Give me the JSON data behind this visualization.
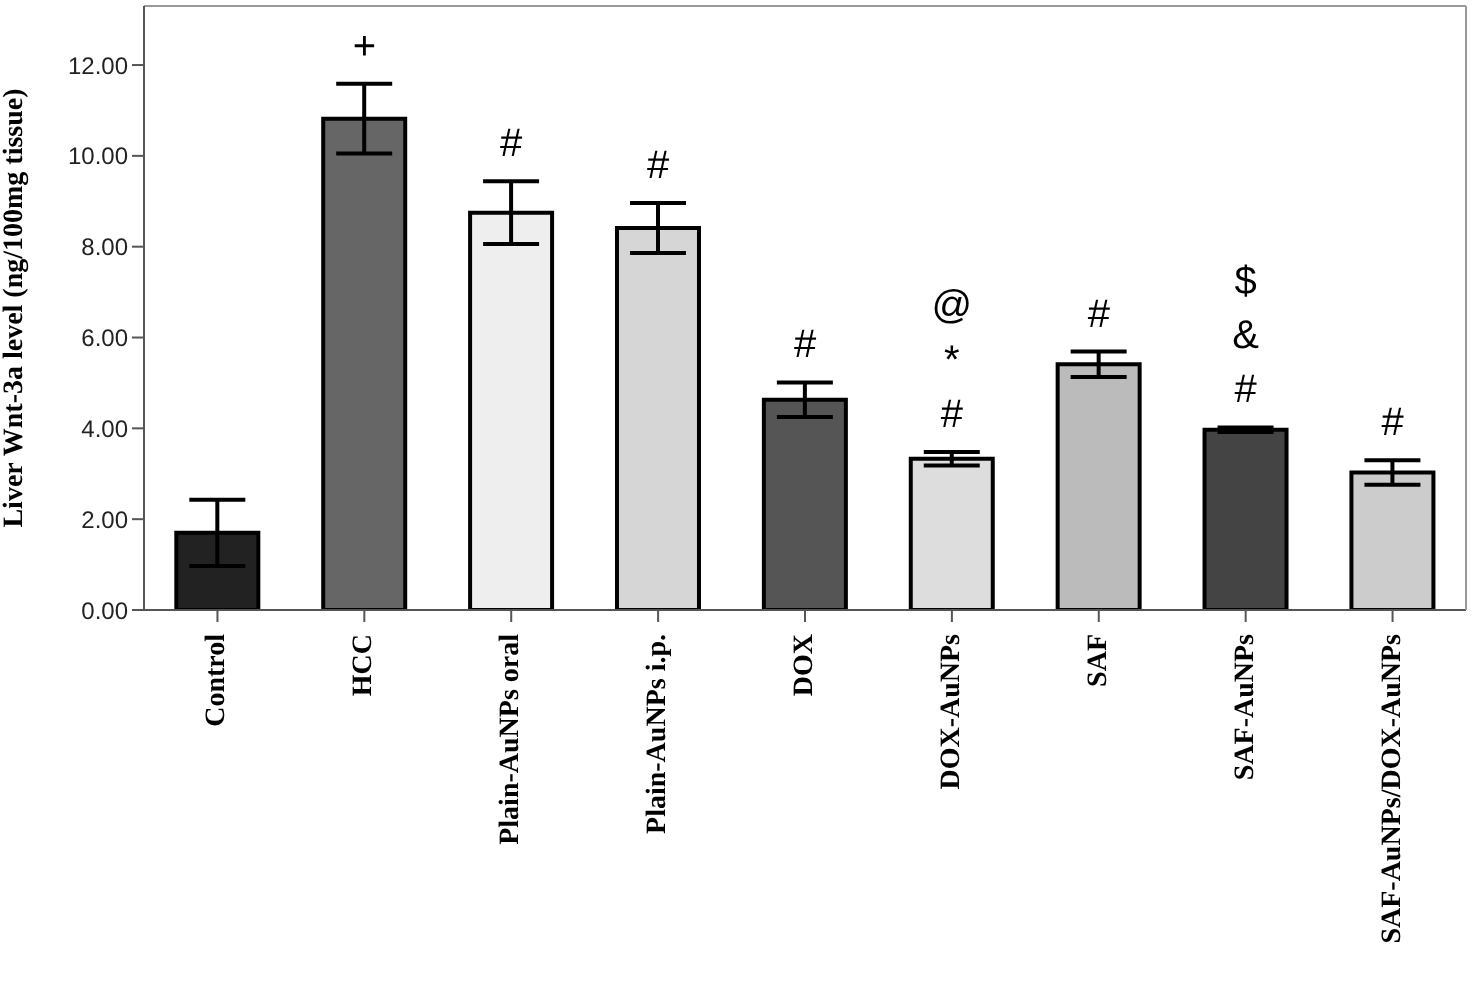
{
  "chart_data": {
    "type": "bar",
    "ylabel": "Liver Wnt-3a level (ng/100mg tissue)",
    "categories": [
      "Control",
      "HCC",
      "Plain-AuNPs oral",
      "Plain-AuNPs i.p.",
      "DOX",
      "DOX-AuNPs",
      "SAF",
      "SAF-AuNPs",
      "SAF-AuNPs/DOX-AuNPs"
    ],
    "values": [
      1.7,
      10.82,
      8.75,
      8.41,
      4.63,
      3.33,
      5.41,
      3.97,
      3.03
    ],
    "errors": [
      0.73,
      0.77,
      0.69,
      0.55,
      0.38,
      0.15,
      0.28,
      0.05,
      0.27
    ],
    "colors": [
      "#222222",
      "#666666",
      "#eeeeee",
      "#d6d6d6",
      "#555555",
      "#dddddd",
      "#bbbbbb",
      "#444444",
      "#cccccc"
    ],
    "ylim": [
      0,
      13.3
    ],
    "yticks": [
      {
        "value": 0,
        "label": "0.00"
      },
      {
        "value": 2,
        "label": "2.00"
      },
      {
        "value": 4,
        "label": "4.00"
      },
      {
        "value": 6,
        "label": "6.00"
      },
      {
        "value": 8,
        "label": "8.00"
      },
      {
        "value": 10,
        "label": "10.00"
      },
      {
        "value": 12,
        "label": "12.00"
      }
    ],
    "grid": false,
    "legend": false,
    "value_labels": [
      null,
      "+",
      "#",
      "#",
      "#",
      "# * @",
      "#",
      "# & $",
      "#"
    ]
  }
}
